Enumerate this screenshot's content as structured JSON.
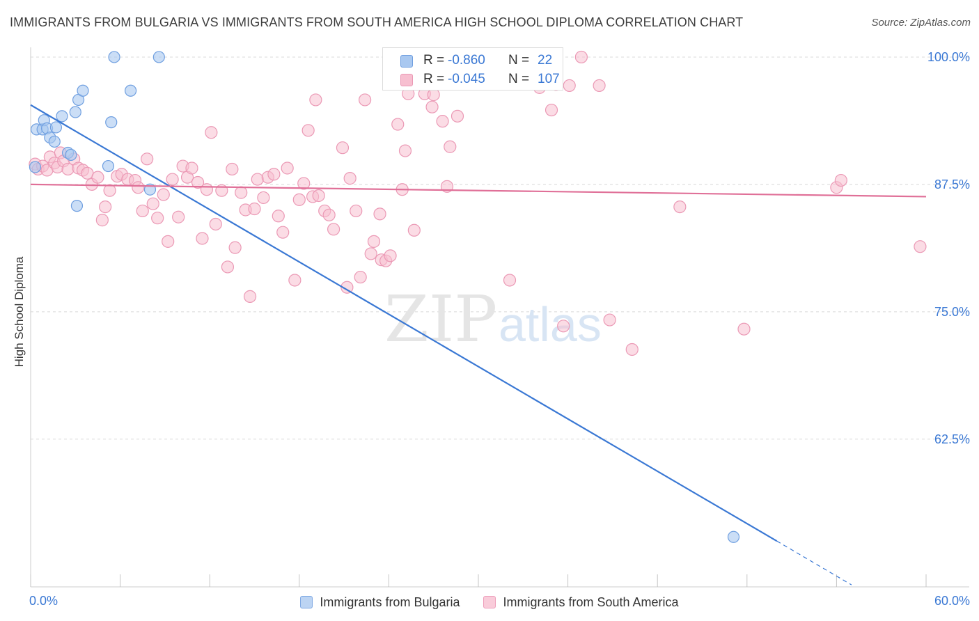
{
  "title": "IMMIGRANTS FROM BULGARIA VS IMMIGRANTS FROM SOUTH AMERICA HIGH SCHOOL DIPLOMA CORRELATION CHART",
  "source": "Source: ZipAtlas.com",
  "watermark": {
    "zip": "ZIP",
    "atlas": "atlas"
  },
  "colors": {
    "blue_line": "#3a78d4",
    "blue_fill": "#a9c8f0",
    "blue_stroke": "#6f9fe0",
    "pink_line": "#e07098",
    "pink_fill": "#f7bfd0",
    "pink_stroke": "#eb99b5",
    "tick_label": "#3a78d4",
    "grid": "#d8d8d8"
  },
  "stats": {
    "row1": {
      "r_key": "R = ",
      "r_val": "-0.860",
      "n_key": "N = ",
      "n_val": "22"
    },
    "row2": {
      "r_key": "R = ",
      "r_val": "-0.045",
      "n_key": "N = ",
      "n_val": "107"
    }
  },
  "legend": {
    "bulgaria": "Immigrants from Bulgaria",
    "south_america": "Immigrants from South America"
  },
  "chart_data": {
    "type": "scatter",
    "title": "IMMIGRANTS FROM BULGARIA VS IMMIGRANTS FROM SOUTH AMERICA HIGH SCHOOL DIPLOMA CORRELATION CHART",
    "xlabel": "",
    "ylabel": "High School Diploma",
    "xlim": [
      0,
      60
    ],
    "ylim": [
      48,
      101.5
    ],
    "x_tick_labels": [
      "0.0%",
      "60.0%"
    ],
    "y_ticks": [
      62.5,
      75.0,
      87.5,
      100.0
    ],
    "y_tick_labels": [
      "62.5%",
      "75.0%",
      "87.5%",
      "100.0%"
    ],
    "grid": true,
    "series": [
      {
        "name": "Immigrants from Bulgaria",
        "r": -0.86,
        "n": 22,
        "trend": {
          "x": [
            0,
            50
          ],
          "y": [
            95.3,
            52.5
          ],
          "dashed_to": [
            55,
            48.2
          ]
        },
        "points": [
          [
            0.3,
            89.2
          ],
          [
            0.4,
            92.9
          ],
          [
            0.8,
            92.9
          ],
          [
            0.9,
            93.8
          ],
          [
            1.1,
            93.0
          ],
          [
            1.3,
            92.1
          ],
          [
            1.7,
            93.1
          ],
          [
            1.6,
            91.7
          ],
          [
            2.1,
            94.2
          ],
          [
            2.5,
            90.6
          ],
          [
            2.7,
            90.4
          ],
          [
            3.2,
            95.8
          ],
          [
            3.0,
            94.6
          ],
          [
            3.5,
            96.7
          ],
          [
            3.1,
            85.4
          ],
          [
            5.2,
            89.3
          ],
          [
            5.4,
            93.6
          ],
          [
            5.6,
            100.0
          ],
          [
            6.7,
            96.7
          ],
          [
            8.0,
            87.0
          ],
          [
            8.6,
            100.0
          ],
          [
            47.1,
            52.9
          ]
        ]
      },
      {
        "name": "Immigrants from South America",
        "r": -0.045,
        "n": 107,
        "trend": {
          "x": [
            0,
            60
          ],
          "y": [
            87.5,
            86.3
          ]
        },
        "points": [
          [
            0.3,
            89.5
          ],
          [
            0.5,
            89.0
          ],
          [
            0.8,
            89.3
          ],
          [
            1.1,
            88.9
          ],
          [
            1.3,
            90.2
          ],
          [
            1.6,
            89.6
          ],
          [
            1.8,
            89.2
          ],
          [
            2.0,
            90.6
          ],
          [
            2.2,
            89.8
          ],
          [
            2.5,
            89.0
          ],
          [
            2.9,
            90.0
          ],
          [
            3.2,
            89.1
          ],
          [
            3.5,
            88.9
          ],
          [
            3.8,
            88.6
          ],
          [
            4.1,
            87.5
          ],
          [
            4.5,
            88.2
          ],
          [
            4.8,
            84.0
          ],
          [
            5.0,
            85.3
          ],
          [
            5.3,
            86.9
          ],
          [
            5.8,
            88.3
          ],
          [
            6.1,
            88.5
          ],
          [
            6.5,
            88.0
          ],
          [
            7.0,
            87.9
          ],
          [
            7.2,
            87.2
          ],
          [
            7.5,
            84.9
          ],
          [
            7.8,
            90.0
          ],
          [
            8.2,
            85.6
          ],
          [
            8.5,
            84.2
          ],
          [
            8.9,
            86.5
          ],
          [
            9.2,
            81.9
          ],
          [
            9.5,
            88.0
          ],
          [
            9.9,
            84.3
          ],
          [
            10.2,
            89.3
          ],
          [
            10.5,
            88.2
          ],
          [
            10.8,
            89.1
          ],
          [
            11.2,
            87.7
          ],
          [
            11.5,
            82.2
          ],
          [
            11.8,
            87.0
          ],
          [
            12.1,
            92.6
          ],
          [
            12.4,
            83.6
          ],
          [
            12.8,
            86.9
          ],
          [
            13.2,
            79.4
          ],
          [
            13.5,
            89.0
          ],
          [
            13.7,
            81.3
          ],
          [
            14.1,
            86.7
          ],
          [
            14.4,
            85.0
          ],
          [
            14.7,
            76.5
          ],
          [
            15.0,
            85.1
          ],
          [
            15.2,
            88.0
          ],
          [
            15.6,
            86.2
          ],
          [
            15.9,
            88.2
          ],
          [
            16.3,
            88.5
          ],
          [
            16.6,
            84.4
          ],
          [
            16.9,
            82.8
          ],
          [
            17.2,
            89.1
          ],
          [
            17.7,
            78.1
          ],
          [
            18.0,
            86.0
          ],
          [
            18.3,
            87.6
          ],
          [
            18.6,
            92.8
          ],
          [
            18.9,
            86.3
          ],
          [
            19.1,
            95.8
          ],
          [
            19.3,
            86.4
          ],
          [
            19.7,
            84.9
          ],
          [
            20.0,
            84.5
          ],
          [
            20.3,
            83.1
          ],
          [
            20.9,
            91.1
          ],
          [
            21.2,
            77.4
          ],
          [
            21.4,
            88.1
          ],
          [
            21.8,
            84.9
          ],
          [
            22.1,
            78.4
          ],
          [
            22.4,
            95.8
          ],
          [
            22.8,
            80.7
          ],
          [
            23.0,
            81.9
          ],
          [
            23.4,
            84.6
          ],
          [
            23.5,
            80.1
          ],
          [
            23.8,
            80.0
          ],
          [
            24.1,
            80.5
          ],
          [
            24.6,
            93.4
          ],
          [
            24.9,
            87.0
          ],
          [
            25.1,
            90.8
          ],
          [
            25.3,
            96.4
          ],
          [
            25.7,
            83.0
          ],
          [
            26.0,
            98.3
          ],
          [
            26.4,
            96.4
          ],
          [
            26.9,
            95.1
          ],
          [
            27.0,
            96.3
          ],
          [
            27.6,
            93.7
          ],
          [
            27.9,
            87.3
          ],
          [
            28.1,
            91.2
          ],
          [
            28.6,
            94.2
          ],
          [
            30.7,
            98.4
          ],
          [
            32.1,
            78.1
          ],
          [
            33.0,
            97.4
          ],
          [
            34.1,
            97.0
          ],
          [
            34.7,
            97.6
          ],
          [
            34.9,
            94.8
          ],
          [
            35.2,
            97.3
          ],
          [
            35.7,
            73.6
          ],
          [
            36.1,
            97.2
          ],
          [
            36.9,
            100.0
          ],
          [
            38.1,
            97.2
          ],
          [
            38.8,
            74.2
          ],
          [
            40.3,
            71.3
          ],
          [
            43.5,
            85.3
          ],
          [
            47.8,
            73.3
          ],
          [
            54.0,
            87.2
          ],
          [
            54.3,
            87.9
          ],
          [
            59.6,
            81.4
          ]
        ]
      }
    ]
  }
}
